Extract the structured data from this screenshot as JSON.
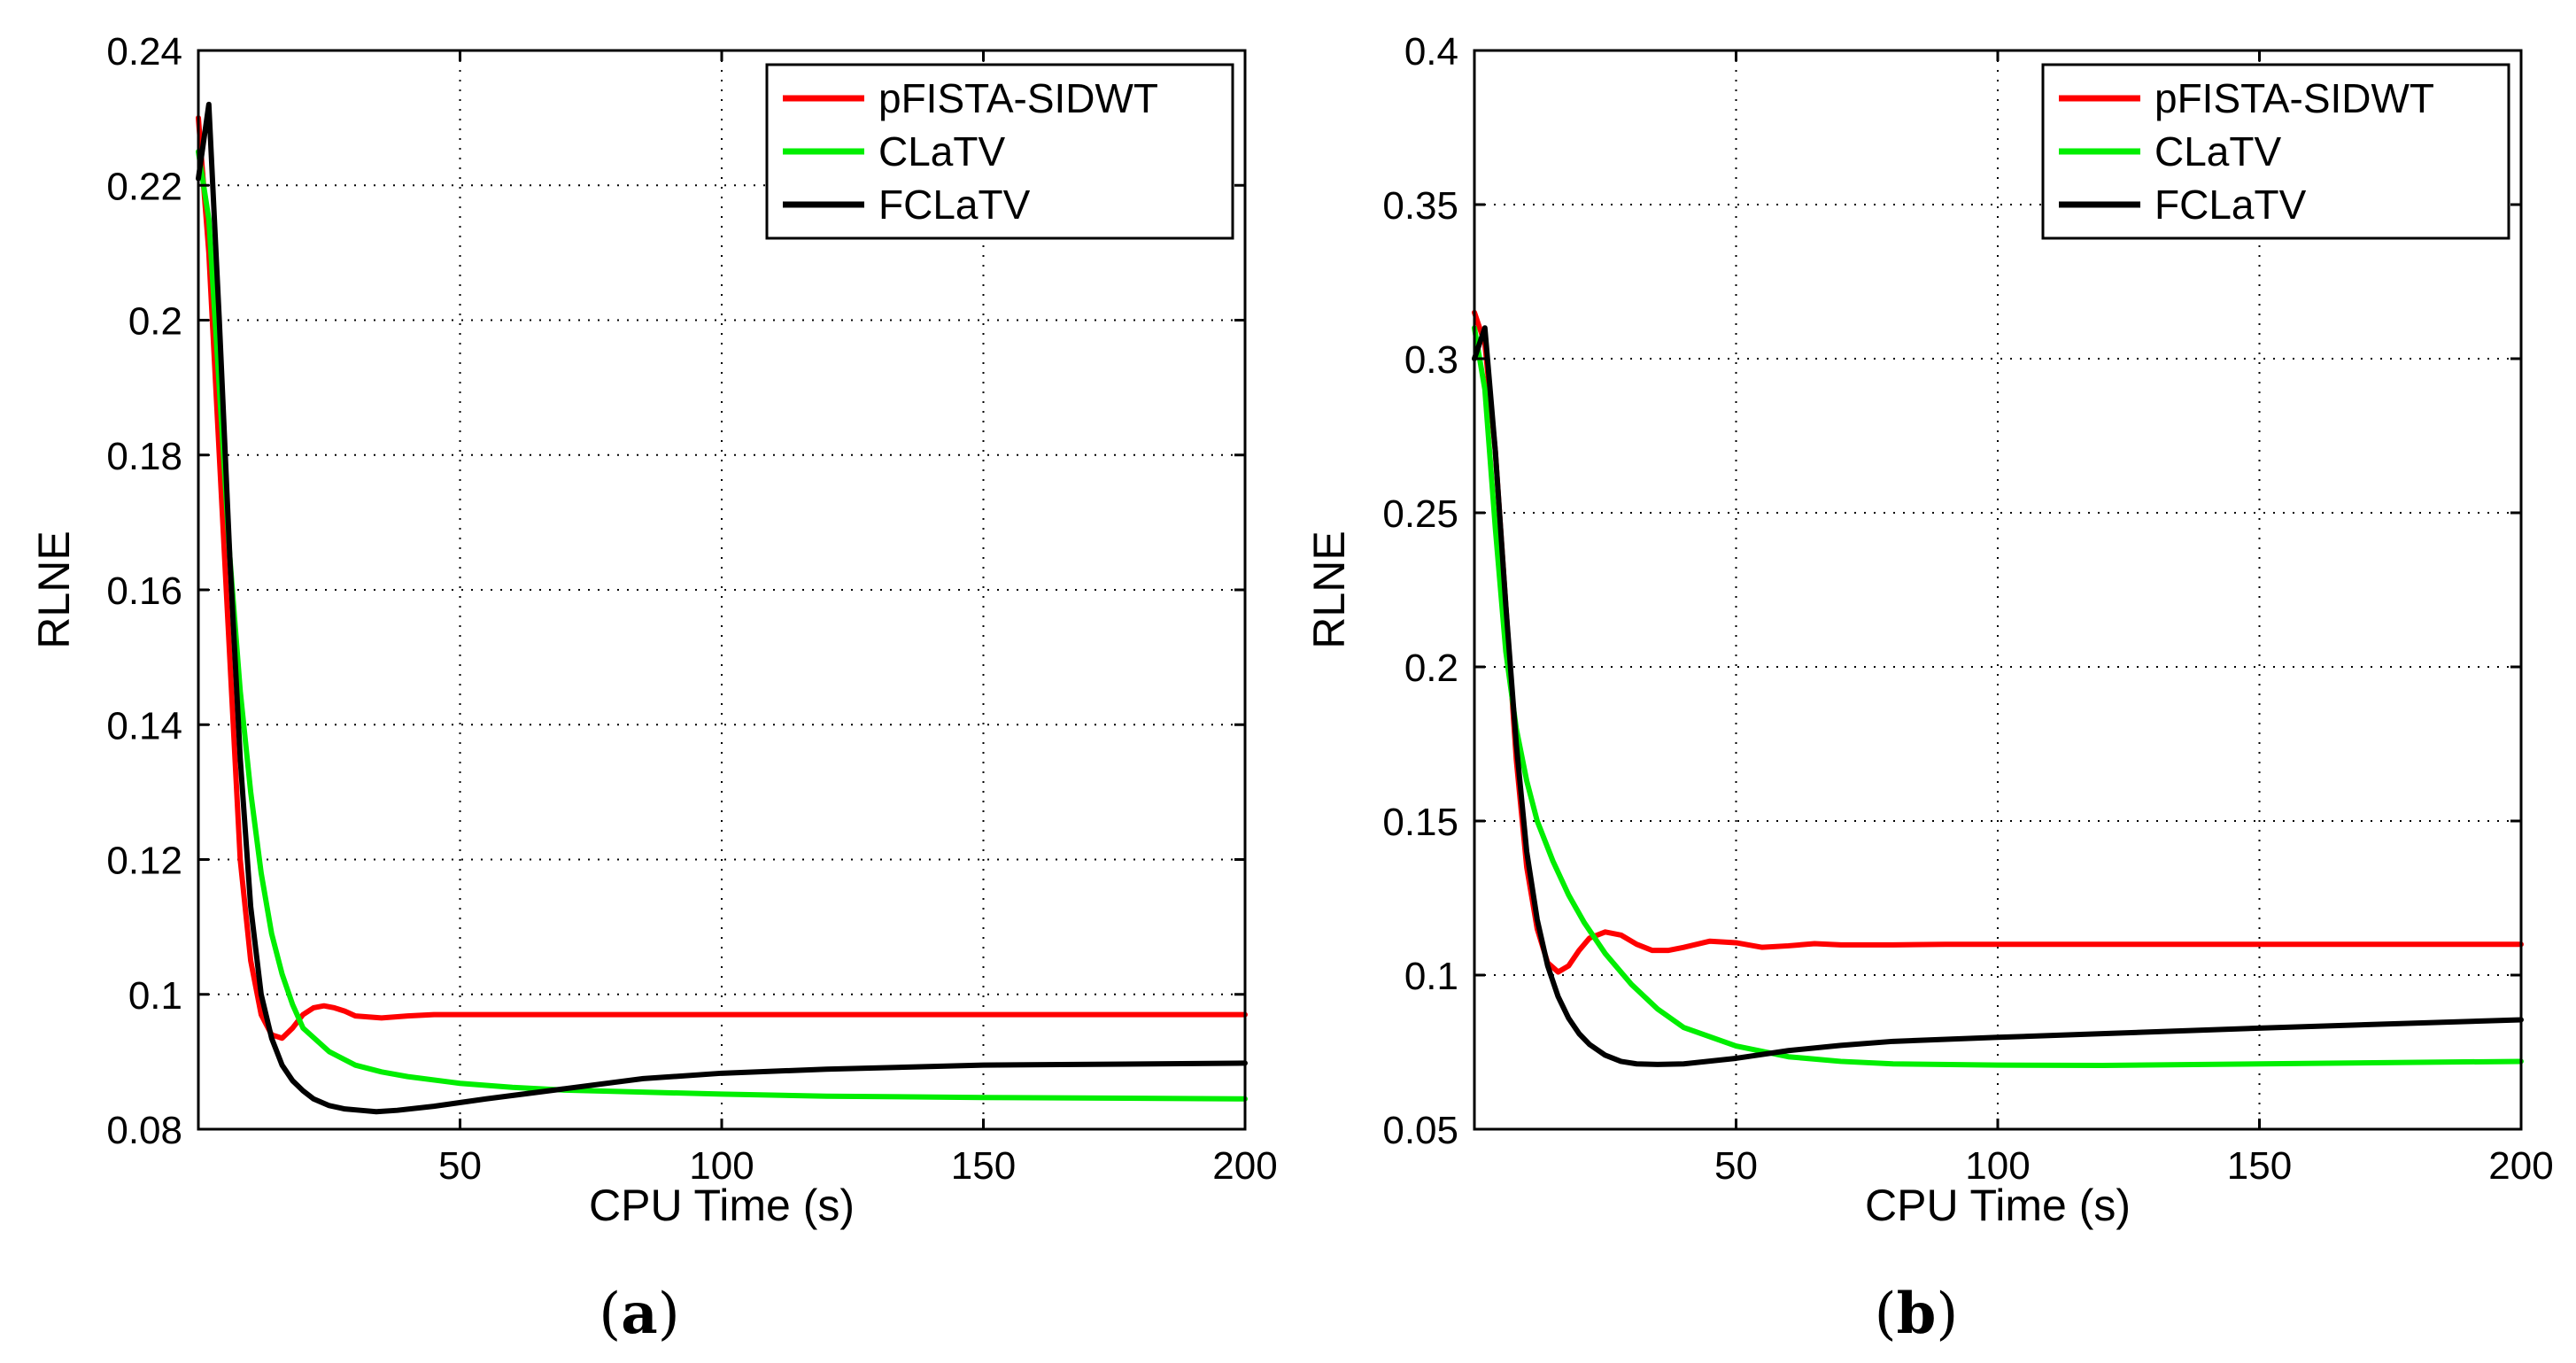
{
  "figure": {
    "captions": [
      "(a)",
      "(b)"
    ],
    "caption_parts": [
      {
        "open": "(",
        "letter": "a",
        "close": ")"
      },
      {
        "open": "(",
        "letter": "b",
        "close": ")"
      }
    ]
  },
  "chart_data": [
    {
      "type": "line",
      "panel": "a",
      "title": "",
      "xlabel": "CPU Time (s)",
      "ylabel": "RLNE",
      "xlim": [
        0,
        200
      ],
      "ylim": [
        0.08,
        0.24
      ],
      "xticks": [
        50,
        100,
        150,
        200
      ],
      "xtick_labels": [
        "50",
        "100",
        "150",
        "200"
      ],
      "yticks": [
        0.08,
        0.1,
        0.12,
        0.14,
        0.16,
        0.18,
        0.2,
        0.22,
        0.24
      ],
      "ytick_labels": [
        "0.08",
        "0.1",
        "0.12",
        "0.14",
        "0.16",
        "0.18",
        "0.2",
        "0.22",
        "0.24"
      ],
      "grid": true,
      "legend_position": "top-right",
      "series": [
        {
          "name": "pFISTA-SIDWT",
          "color": "#ff0000",
          "x": [
            0,
            2,
            4,
            6,
            8,
            10,
            12,
            14,
            16,
            18,
            20,
            22,
            24,
            26,
            28,
            30,
            35,
            40,
            45,
            50,
            60,
            80,
            100,
            150,
            200
          ],
          "y": [
            0.23,
            0.21,
            0.18,
            0.15,
            0.12,
            0.105,
            0.097,
            0.094,
            0.0935,
            0.095,
            0.097,
            0.098,
            0.0983,
            0.098,
            0.0975,
            0.0968,
            0.0965,
            0.0968,
            0.097,
            0.097,
            0.097,
            0.097,
            0.097,
            0.097,
            0.097
          ]
        },
        {
          "name": "CLaTV",
          "color": "#00ee00",
          "x": [
            0,
            2,
            4,
            6,
            8,
            10,
            12,
            14,
            16,
            18,
            20,
            25,
            30,
            35,
            40,
            50,
            60,
            70,
            80,
            100,
            120,
            150,
            200
          ],
          "y": [
            0.225,
            0.215,
            0.19,
            0.165,
            0.145,
            0.13,
            0.118,
            0.109,
            0.103,
            0.0985,
            0.095,
            0.0915,
            0.0895,
            0.0885,
            0.0878,
            0.0868,
            0.0862,
            0.0858,
            0.0856,
            0.0852,
            0.0849,
            0.0847,
            0.0845
          ]
        },
        {
          "name": "FCLaTV",
          "color": "#000000",
          "x": [
            0,
            2,
            4,
            6,
            8,
            10,
            12,
            14,
            16,
            18,
            20,
            22,
            25,
            28,
            31,
            34,
            38,
            45,
            55,
            70,
            85,
            100,
            120,
            150,
            200
          ],
          "y": [
            0.221,
            0.232,
            0.2,
            0.165,
            0.135,
            0.113,
            0.1,
            0.0935,
            0.0895,
            0.0872,
            0.0857,
            0.0845,
            0.0835,
            0.083,
            0.0828,
            0.0826,
            0.0828,
            0.0834,
            0.0845,
            0.086,
            0.0875,
            0.0883,
            0.0889,
            0.0895,
            0.0898
          ]
        }
      ]
    },
    {
      "type": "line",
      "panel": "b",
      "title": "",
      "xlabel": "CPU Time (s)",
      "ylabel": "RLNE",
      "xlim": [
        0,
        200
      ],
      "ylim": [
        0.05,
        0.4
      ],
      "xticks": [
        50,
        100,
        150,
        200
      ],
      "xtick_labels": [
        "50",
        "100",
        "150",
        "200"
      ],
      "yticks": [
        0.05,
        0.1,
        0.15,
        0.2,
        0.25,
        0.3,
        0.35,
        0.4
      ],
      "ytick_labels": [
        "0.05",
        "0.1",
        "0.15",
        "0.2",
        "0.25",
        "0.3",
        "0.35",
        "0.4"
      ],
      "grid": true,
      "legend_position": "top-right",
      "series": [
        {
          "name": "pFISTA-SIDWT",
          "color": "#ff0000",
          "x": [
            0,
            2,
            4,
            6,
            8,
            10,
            12,
            14,
            16,
            18,
            20,
            22,
            25,
            28,
            31,
            34,
            37,
            40,
            45,
            50,
            55,
            60,
            65,
            70,
            80,
            90,
            100,
            150,
            200
          ],
          "y": [
            0.315,
            0.305,
            0.27,
            0.22,
            0.17,
            0.135,
            0.115,
            0.104,
            0.101,
            0.103,
            0.108,
            0.112,
            0.114,
            0.113,
            0.11,
            0.108,
            0.108,
            0.109,
            0.111,
            0.1105,
            0.109,
            0.1095,
            0.1102,
            0.1098,
            0.1098,
            0.11,
            0.11,
            0.11,
            0.11
          ]
        },
        {
          "name": "CLaTV",
          "color": "#00ee00",
          "x": [
            0,
            2,
            4,
            6,
            8,
            10,
            12,
            15,
            18,
            21,
            25,
            30,
            35,
            40,
            50,
            60,
            70,
            80,
            100,
            120,
            150,
            200
          ],
          "y": [
            0.31,
            0.29,
            0.245,
            0.205,
            0.18,
            0.163,
            0.15,
            0.137,
            0.126,
            0.117,
            0.107,
            0.097,
            0.089,
            0.083,
            0.077,
            0.0735,
            0.072,
            0.0712,
            0.0708,
            0.0707,
            0.0712,
            0.072
          ]
        },
        {
          "name": "FCLaTV",
          "color": "#000000",
          "x": [
            0,
            2,
            4,
            6,
            8,
            10,
            12,
            14,
            16,
            18,
            20,
            22,
            25,
            28,
            31,
            35,
            40,
            50,
            60,
            70,
            80,
            100,
            120,
            150,
            200
          ],
          "y": [
            0.3,
            0.31,
            0.27,
            0.22,
            0.175,
            0.14,
            0.118,
            0.103,
            0.093,
            0.086,
            0.081,
            0.0775,
            0.074,
            0.072,
            0.0712,
            0.071,
            0.0712,
            0.073,
            0.0755,
            0.0772,
            0.0785,
            0.0798,
            0.081,
            0.0828,
            0.0855
          ]
        }
      ]
    }
  ]
}
